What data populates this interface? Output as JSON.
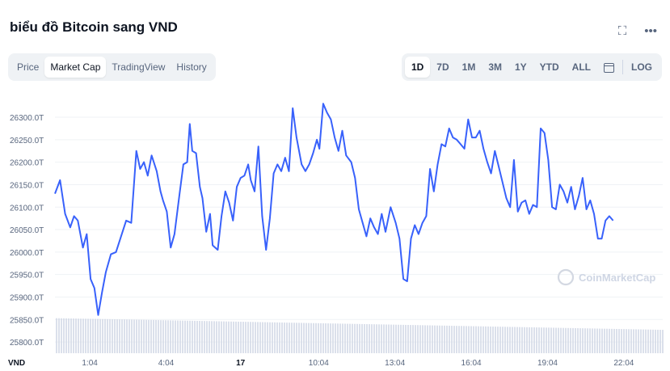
{
  "page": {
    "title": "biểu đồ Bitcoin sang VND",
    "fullscreen_icon": "expand-icon",
    "more_icon": "more-dots-icon"
  },
  "tabs": [
    {
      "label": "Price",
      "active": false
    },
    {
      "label": "Market Cap",
      "active": true
    },
    {
      "label": "TradingView",
      "active": false
    },
    {
      "label": "History",
      "active": false
    }
  ],
  "ranges": [
    {
      "label": "1D",
      "active": true
    },
    {
      "label": "7D",
      "active": false
    },
    {
      "label": "1M",
      "active": false
    },
    {
      "label": "3M",
      "active": false
    },
    {
      "label": "1Y",
      "active": false
    },
    {
      "label": "YTD",
      "active": false
    },
    {
      "label": "ALL",
      "active": false
    }
  ],
  "calendar_icon": "calendar-icon",
  "log_label": "LOG",
  "watermark": "CoinMarketCap",
  "colors": {
    "line": "#3861fb",
    "volume": "#cfd6e4",
    "grid": "#eff2f5",
    "accent": "#3861fb"
  },
  "chart_data": {
    "type": "line",
    "title": "biểu đồ Bitcoin sang VND",
    "ylabel": "VND",
    "xlabel": "",
    "currency_label": "VND",
    "ylim": [
      25775,
      26345
    ],
    "yticks": [
      "25800.0T",
      "25850.0T",
      "25900.0T",
      "25950.0T",
      "26000.0T",
      "26050.0T",
      "26100.0T",
      "26150.0T",
      "26200.0T",
      "26250.0T",
      "26300.0T"
    ],
    "ytick_values": [
      25800,
      25850,
      25900,
      25950,
      26000,
      26050,
      26100,
      26150,
      26200,
      26250,
      26300
    ],
    "xlim": [
      -0.3,
      23.6
    ],
    "xticks": [
      {
        "label": "1:04",
        "x": 1.07,
        "bold": false
      },
      {
        "label": "4:04",
        "x": 4.07,
        "bold": false
      },
      {
        "label": "17",
        "x": 7.0,
        "bold": true
      },
      {
        "label": "10:04",
        "x": 10.07,
        "bold": false
      },
      {
        "label": "13:04",
        "x": 13.07,
        "bold": false
      },
      {
        "label": "16:04",
        "x": 16.07,
        "bold": false
      },
      {
        "label": "19:04",
        "x": 19.07,
        "bold": false
      },
      {
        "label": "22:04",
        "x": 22.07,
        "bold": false
      }
    ],
    "series": [
      {
        "values": [
          [
            -0.3,
            26130
          ],
          [
            -0.1,
            26160
          ],
          [
            0.1,
            26085
          ],
          [
            0.3,
            26055
          ],
          [
            0.45,
            26080
          ],
          [
            0.6,
            26070
          ],
          [
            0.8,
            26010
          ],
          [
            0.95,
            26040
          ],
          [
            1.1,
            25940
          ],
          [
            1.25,
            25920
          ],
          [
            1.4,
            25860
          ],
          [
            1.55,
            25910
          ],
          [
            1.7,
            25955
          ],
          [
            1.9,
            25995
          ],
          [
            2.1,
            26000
          ],
          [
            2.3,
            26035
          ],
          [
            2.5,
            26070
          ],
          [
            2.7,
            26065
          ],
          [
            2.9,
            26225
          ],
          [
            3.05,
            26185
          ],
          [
            3.2,
            26200
          ],
          [
            3.35,
            26170
          ],
          [
            3.5,
            26215
          ],
          [
            3.7,
            26180
          ],
          [
            3.85,
            26135
          ],
          [
            3.95,
            26115
          ],
          [
            4.1,
            26090
          ],
          [
            4.25,
            26010
          ],
          [
            4.4,
            26040
          ],
          [
            4.6,
            26130
          ],
          [
            4.75,
            26195
          ],
          [
            4.9,
            26200
          ],
          [
            5.0,
            26285
          ],
          [
            5.1,
            26225
          ],
          [
            5.25,
            26220
          ],
          [
            5.4,
            26145
          ],
          [
            5.5,
            26120
          ],
          [
            5.65,
            26045
          ],
          [
            5.8,
            26085
          ],
          [
            5.9,
            26015
          ],
          [
            6.1,
            26005
          ],
          [
            6.25,
            26080
          ],
          [
            6.4,
            26135
          ],
          [
            6.55,
            26110
          ],
          [
            6.7,
            26070
          ],
          [
            6.85,
            26145
          ],
          [
            7.0,
            26165
          ],
          [
            7.15,
            26170
          ],
          [
            7.3,
            26195
          ],
          [
            7.4,
            26160
          ],
          [
            7.55,
            26135
          ],
          [
            7.7,
            26235
          ],
          [
            7.85,
            26080
          ],
          [
            8.0,
            26005
          ],
          [
            8.15,
            26075
          ],
          [
            8.3,
            26175
          ],
          [
            8.45,
            26195
          ],
          [
            8.6,
            26180
          ],
          [
            8.75,
            26210
          ],
          [
            8.9,
            26180
          ],
          [
            9.05,
            26320
          ],
          [
            9.2,
            26255
          ],
          [
            9.4,
            26195
          ],
          [
            9.55,
            26180
          ],
          [
            9.7,
            26195
          ],
          [
            9.85,
            26220
          ],
          [
            10.0,
            26250
          ],
          [
            10.1,
            26230
          ],
          [
            10.25,
            26330
          ],
          [
            10.4,
            26310
          ],
          [
            10.55,
            26295
          ],
          [
            10.7,
            26255
          ],
          [
            10.85,
            26225
          ],
          [
            11.0,
            26270
          ],
          [
            11.15,
            26215
          ],
          [
            11.35,
            26200
          ],
          [
            11.5,
            26165
          ],
          [
            11.65,
            26095
          ],
          [
            11.8,
            26065
          ],
          [
            11.95,
            26035
          ],
          [
            12.1,
            26075
          ],
          [
            12.25,
            26055
          ],
          [
            12.4,
            26040
          ],
          [
            12.55,
            26085
          ],
          [
            12.7,
            26045
          ],
          [
            12.9,
            26100
          ],
          [
            13.1,
            26065
          ],
          [
            13.25,
            26030
          ],
          [
            13.4,
            25940
          ],
          [
            13.55,
            25935
          ],
          [
            13.7,
            26030
          ],
          [
            13.85,
            26060
          ],
          [
            14.0,
            26040
          ],
          [
            14.15,
            26065
          ],
          [
            14.3,
            26080
          ],
          [
            14.45,
            26185
          ],
          [
            14.6,
            26135
          ],
          [
            14.75,
            26195
          ],
          [
            14.9,
            26240
          ],
          [
            15.05,
            26235
          ],
          [
            15.2,
            26275
          ],
          [
            15.35,
            26255
          ],
          [
            15.5,
            26250
          ],
          [
            15.65,
            26240
          ],
          [
            15.8,
            26230
          ],
          [
            15.95,
            26295
          ],
          [
            16.1,
            26255
          ],
          [
            16.25,
            26255
          ],
          [
            16.4,
            26270
          ],
          [
            16.55,
            26230
          ],
          [
            16.7,
            26200
          ],
          [
            16.85,
            26175
          ],
          [
            17.0,
            26225
          ],
          [
            17.15,
            26190
          ],
          [
            17.3,
            26155
          ],
          [
            17.45,
            26120
          ],
          [
            17.6,
            26100
          ],
          [
            17.75,
            26205
          ],
          [
            17.9,
            26090
          ],
          [
            18.05,
            26110
          ],
          [
            18.2,
            26115
          ],
          [
            18.35,
            26085
          ],
          [
            18.5,
            26105
          ],
          [
            18.65,
            26100
          ],
          [
            18.8,
            26275
          ],
          [
            18.95,
            26265
          ],
          [
            19.1,
            26205
          ],
          [
            19.25,
            26100
          ],
          [
            19.4,
            26095
          ],
          [
            19.55,
            26150
          ],
          [
            19.7,
            26135
          ],
          [
            19.85,
            26110
          ],
          [
            20.0,
            26145
          ],
          [
            20.15,
            26095
          ],
          [
            20.3,
            26125
          ],
          [
            20.45,
            26165
          ],
          [
            20.6,
            26095
          ],
          [
            20.75,
            26115
          ],
          [
            20.9,
            26085
          ],
          [
            21.05,
            26030
          ],
          [
            21.2,
            26030
          ],
          [
            21.35,
            26070
          ],
          [
            21.5,
            26080
          ],
          [
            21.65,
            26070
          ]
        ]
      }
    ],
    "volume_note": "volume bars along bottom",
    "grid": true,
    "legend": "none"
  }
}
